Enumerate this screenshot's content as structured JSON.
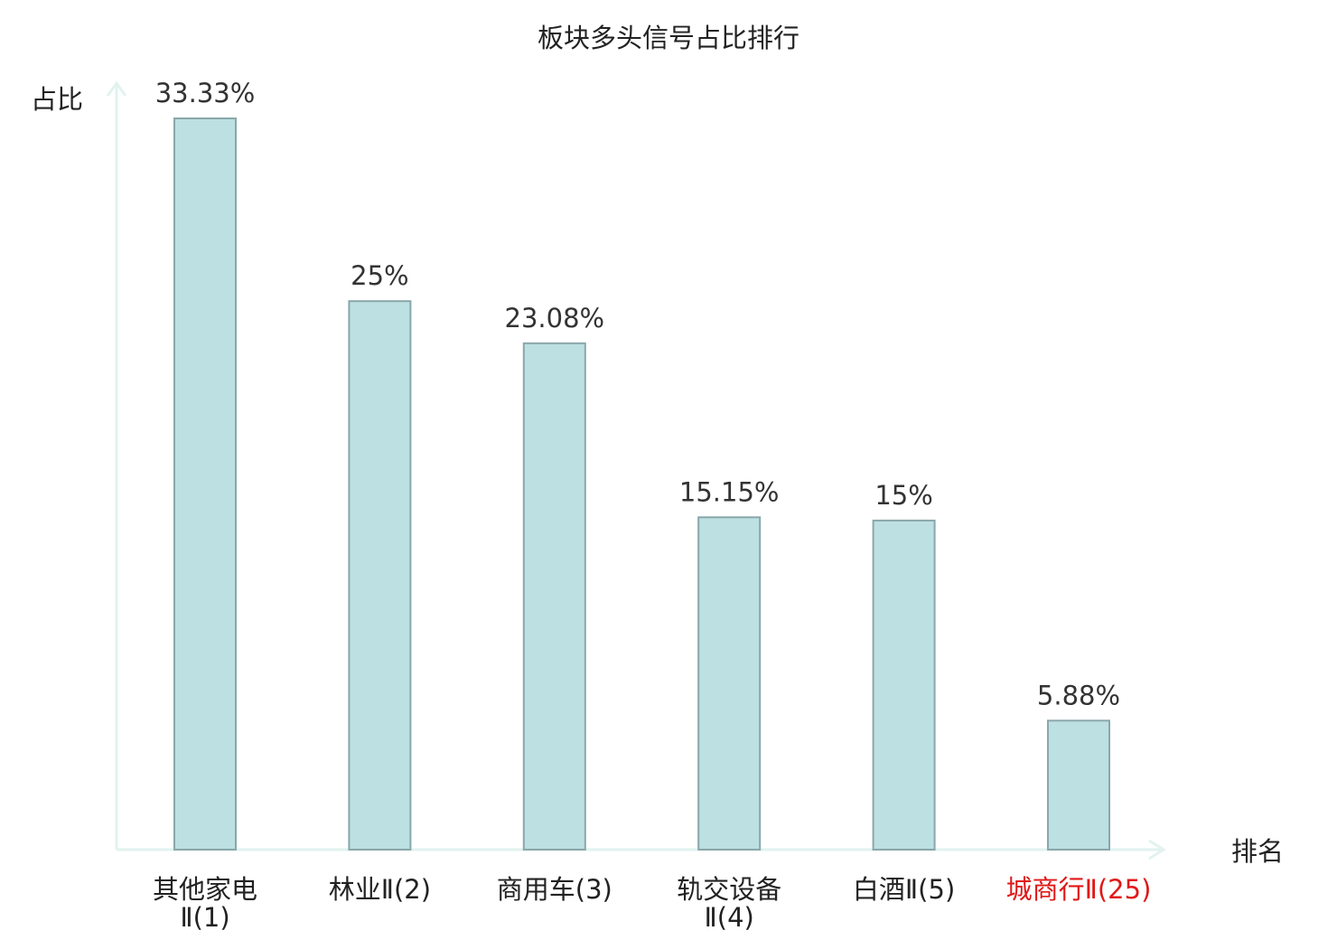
{
  "chart_data": {
    "type": "bar",
    "title": "板块多头信号占比排行",
    "xlabel": "排名",
    "ylabel": "占比",
    "categories": [
      {
        "line1": "其他家电",
        "line2": "Ⅱ(1)",
        "highlight": false
      },
      {
        "line1": "林业Ⅱ(2)",
        "line2": "",
        "highlight": false
      },
      {
        "line1": "商用车(3)",
        "line2": "",
        "highlight": false
      },
      {
        "line1": "轨交设备",
        "line2": "Ⅱ(4)",
        "highlight": false
      },
      {
        "line1": "白酒Ⅱ(5)",
        "line2": "",
        "highlight": false
      },
      {
        "line1": "城商行Ⅱ(25)",
        "line2": "",
        "highlight": true
      }
    ],
    "values": [
      33.33,
      25,
      23.08,
      15.15,
      15,
      5.88
    ],
    "value_labels": [
      "33.33%",
      "25%",
      "23.08%",
      "15.15%",
      "15%",
      "5.88%"
    ],
    "ylim": [
      0,
      35
    ],
    "grid": false,
    "colors": {
      "bar_fill": "#bde0e2",
      "bar_stroke": "#8aa7aa",
      "axis": "#e2f3ef",
      "label_normal": "#222222",
      "label_highlight": "#e01818"
    }
  }
}
